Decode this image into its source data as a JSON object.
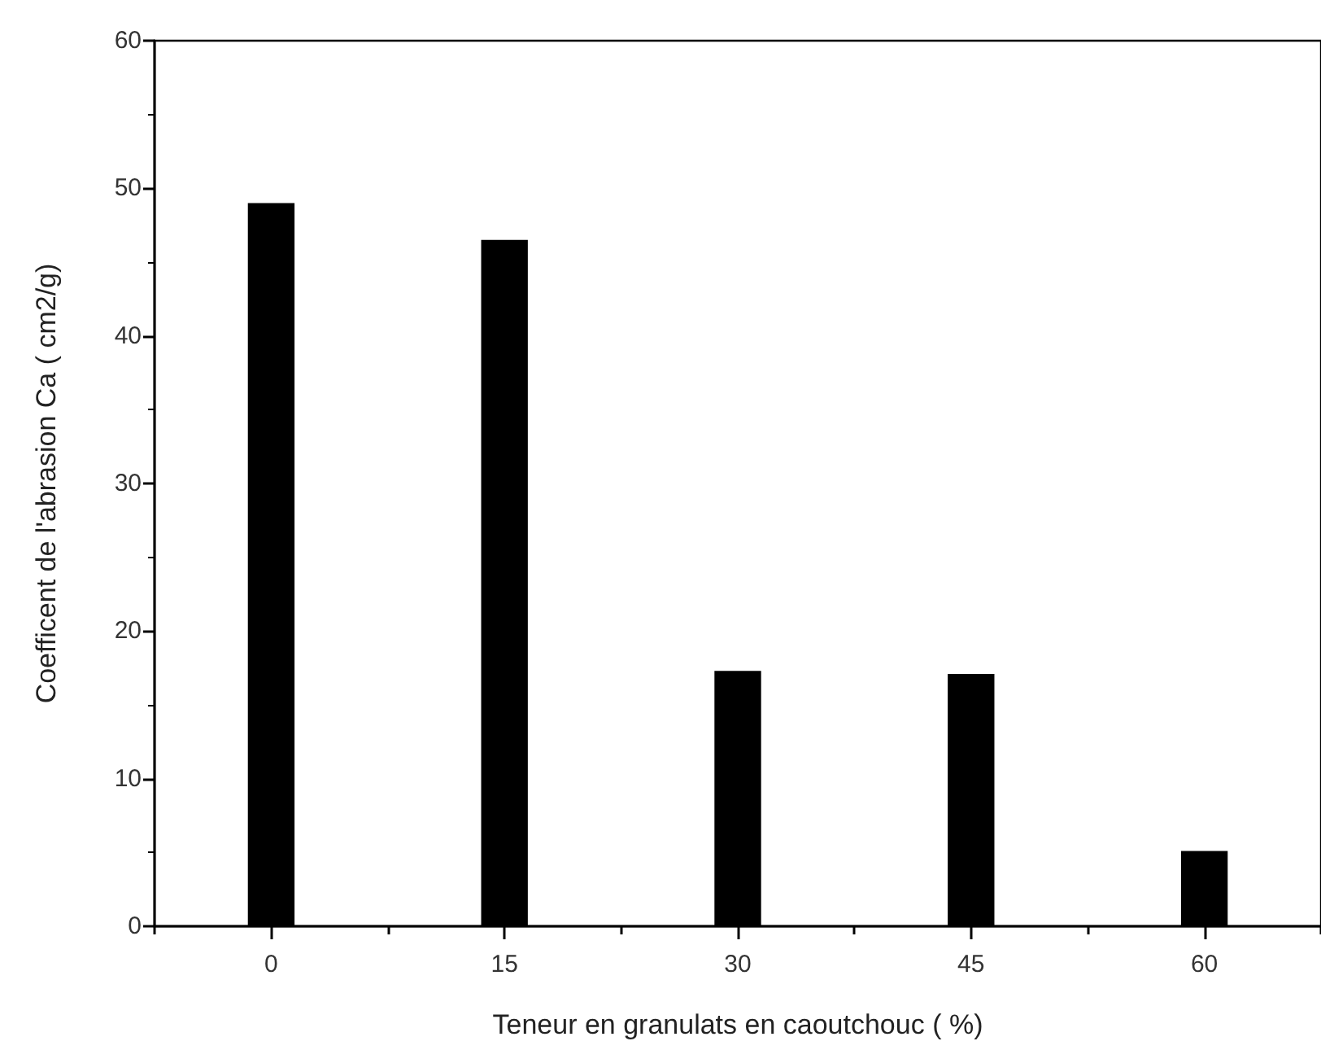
{
  "chart_data": {
    "type": "bar",
    "xlabel": "Teneur en granulats en caoutchouc ( %)",
    "ylabel": "Coefficent de l'abrasion Ca ( cm2/g)",
    "categories": [
      "0",
      "15",
      "30",
      "45",
      "60"
    ],
    "values": [
      49,
      46.5,
      17.3,
      17.1,
      5.1
    ],
    "color": "#000000",
    "ylim": [
      0,
      60
    ],
    "yticks": [
      0,
      10,
      20,
      30,
      40,
      50,
      60
    ]
  }
}
